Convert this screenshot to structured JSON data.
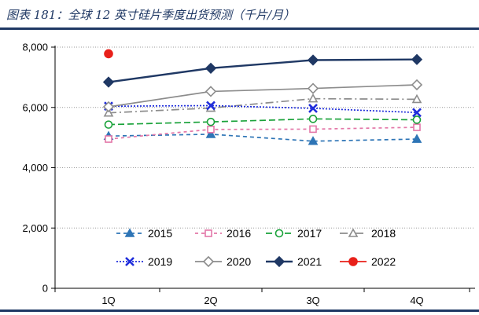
{
  "header": {
    "figure_title": "图表 181：全球 12 英寸硅片季度出货预测（千片/月）"
  },
  "chart_data": {
    "type": "line",
    "title": "",
    "xlabel": "",
    "ylabel": "",
    "categories": [
      "1Q",
      "2Q",
      "3Q",
      "4Q"
    ],
    "ylim": [
      0,
      8000
    ],
    "yticks": [
      0,
      2000,
      4000,
      6000,
      8000
    ],
    "ytick_labels": [
      "0",
      "2,000",
      "4,000",
      "6,000",
      "8,000"
    ],
    "grid": "horizontal",
    "legend_position": "bottom-center",
    "series": [
      {
        "name": "2015",
        "values": [
          5050,
          5110,
          4880,
          4950
        ],
        "color": "#2e75b6",
        "dash": "5,4",
        "marker": "triangle",
        "filled": true
      },
      {
        "name": "2016",
        "values": [
          4950,
          5270,
          5280,
          5340
        ],
        "color": "#e377a8",
        "dash": "4,4",
        "marker": "square",
        "filled": false
      },
      {
        "name": "2017",
        "values": [
          5430,
          5520,
          5620,
          5590
        ],
        "color": "#1aa23a",
        "dash": "8,4",
        "marker": "circle",
        "filled": false
      },
      {
        "name": "2018",
        "values": [
          5820,
          5980,
          6290,
          6270
        ],
        "color": "#8c8c8c",
        "dash": "10,4,2,4",
        "marker": "triangle",
        "filled": false
      },
      {
        "name": "2019",
        "values": [
          6040,
          6060,
          5970,
          5830
        ],
        "color": "#1f2ddb",
        "dash": "2,2",
        "marker": "x",
        "filled": false
      },
      {
        "name": "2020",
        "values": [
          6020,
          6530,
          6630,
          6750
        ],
        "color": "#8c8c8c",
        "dash": "",
        "marker": "diamond",
        "filled": false
      },
      {
        "name": "2021",
        "values": [
          6840,
          7300,
          7570,
          7590
        ],
        "color": "#1f3864",
        "dash": "",
        "marker": "diamond",
        "filled": true
      },
      {
        "name": "2022",
        "values": [
          7780,
          null,
          null,
          null
        ],
        "color": "#e8201a",
        "dash": "",
        "marker": "circle",
        "filled": true
      }
    ]
  }
}
